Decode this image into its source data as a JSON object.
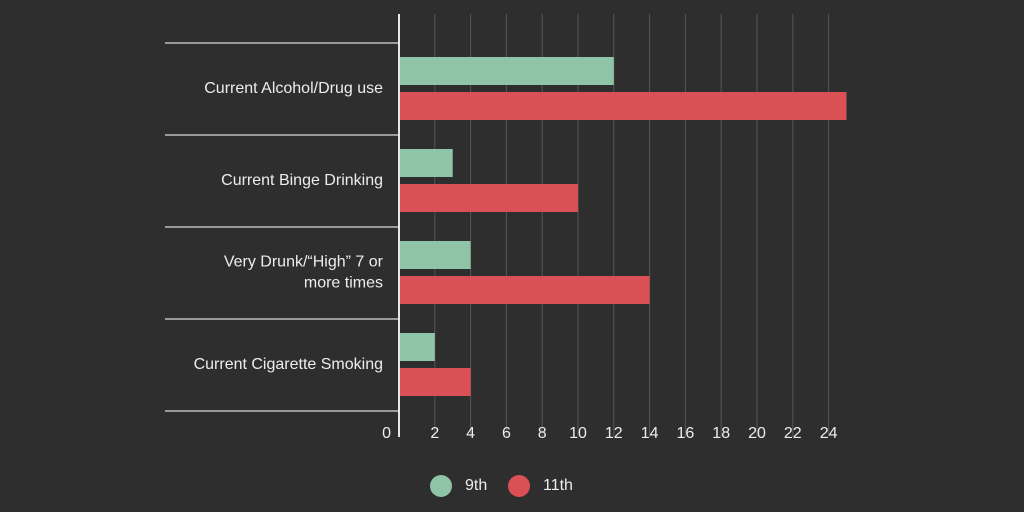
{
  "chart_data": {
    "type": "bar",
    "orientation": "horizontal",
    "title": "",
    "xlabel": "",
    "ylabel": "",
    "categories": [
      [
        "Current Alcohol/Drug use"
      ],
      [
        "Current Binge Drinking"
      ],
      [
        "Very Drunk/“High” 7 or",
        "more times"
      ],
      [
        "Current Cigarette Smoking"
      ]
    ],
    "series": [
      {
        "name": "9th",
        "color": "#8fc4a6",
        "values": [
          12,
          3,
          4,
          2
        ]
      },
      {
        "name": "11th",
        "color": "#db5055",
        "values": [
          25,
          10,
          14,
          4
        ]
      }
    ],
    "x_ticks": [
      0,
      2,
      4,
      6,
      8,
      10,
      12,
      14,
      16,
      18,
      20,
      22,
      24
    ],
    "xlim": [
      0,
      25
    ],
    "grid": true,
    "legend": "bottom-center"
  }
}
